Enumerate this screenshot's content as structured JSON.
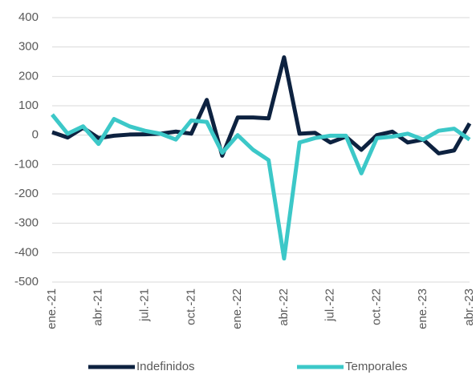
{
  "chart_data": {
    "type": "line",
    "categories": [
      "ene.-21",
      null,
      null,
      "abr.-21",
      null,
      null,
      "jul.-21",
      null,
      null,
      "oct.-21",
      null,
      null,
      "ene.-22",
      null,
      null,
      "abr.-22",
      null,
      null,
      "jul.-22",
      null,
      null,
      "oct.-22",
      null,
      null,
      "ene.-23",
      null,
      null,
      "abr.-23"
    ],
    "series": [
      {
        "name": "Indefinidos",
        "color": "#0d2240",
        "values": [
          10,
          -8,
          25,
          -10,
          -2,
          2,
          3,
          5,
          12,
          5,
          120,
          -70,
          60,
          60,
          57,
          265,
          5,
          8,
          -25,
          -5,
          -50,
          0,
          12,
          -25,
          -15,
          -62,
          -52,
          40
        ]
      },
      {
        "name": "Temporales",
        "color": "#3cc8c8",
        "values": [
          70,
          5,
          30,
          -30,
          55,
          30,
          15,
          5,
          -15,
          50,
          45,
          -60,
          0,
          -50,
          -85,
          -420,
          -25,
          -10,
          -2,
          -2,
          -130,
          -10,
          -5,
          5,
          -15,
          15,
          22,
          -15
        ]
      }
    ],
    "ylim": [
      -500,
      400
    ],
    "yticks": [
      -500,
      -400,
      -300,
      -200,
      -100,
      0,
      100,
      200,
      300,
      400
    ],
    "grid": true,
    "legend": "bottom"
  }
}
